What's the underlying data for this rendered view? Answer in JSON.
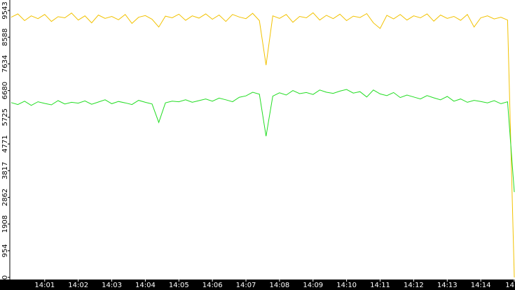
{
  "chart_data": {
    "type": "line",
    "x": [
      0,
      0.2,
      0.4,
      0.6,
      0.8,
      1,
      1.2,
      1.4,
      1.6,
      1.8,
      2,
      2.2,
      2.4,
      2.6,
      2.8,
      3,
      3.2,
      3.4,
      3.6,
      3.8,
      4,
      4.2,
      4.4,
      4.6,
      4.8,
      5,
      5.2,
      5.4,
      5.6,
      5.8,
      6,
      6.2,
      6.4,
      6.6,
      6.8,
      7,
      7.2,
      7.4,
      7.6,
      7.8,
      8,
      8.2,
      8.4,
      8.6,
      8.8,
      9,
      9.2,
      9.4,
      9.6,
      9.8,
      10,
      10.2,
      10.4,
      10.6,
      10.8,
      11,
      11.2,
      11.4,
      11.6,
      11.8,
      12,
      12.2,
      12.4,
      12.6,
      12.8,
      13,
      13.2,
      13.4,
      13.6,
      13.8,
      14,
      14.2,
      14.4,
      14.6,
      14.8,
      15
    ],
    "series": [
      {
        "color": "#f2c200",
        "values": [
          9300,
          9420,
          9180,
          9350,
          9250,
          9400,
          9150,
          9320,
          9280,
          9450,
          9200,
          9350,
          9100,
          9380,
          9260,
          9330,
          9210,
          9400,
          9080,
          9300,
          9360,
          9230,
          8950,
          9340,
          9280,
          9410,
          9190,
          9350,
          9270,
          9420,
          9230,
          9380,
          9150,
          9400,
          9310,
          9250,
          9440,
          9180,
          7590,
          9350,
          9260,
          9400,
          9120,
          9330,
          9280,
          9460,
          9200,
          9370,
          9250,
          9410,
          9180,
          9340,
          9290,
          9430,
          9100,
          8900,
          9370,
          9240,
          9400,
          9200,
          9350,
          9280,
          9420,
          9160,
          9380,
          9260,
          9330,
          9190,
          9400,
          8950,
          9280,
          9350,
          9240,
          9300,
          9200,
          0
        ]
      },
      {
        "color": "#22dd22",
        "values": [
          6250,
          6180,
          6300,
          6150,
          6280,
          6220,
          6170,
          6320,
          6200,
          6260,
          6230,
          6310,
          6190,
          6270,
          6350,
          6210,
          6290,
          6240,
          6180,
          6330,
          6260,
          6200,
          5540,
          6240,
          6300,
          6280,
          6350,
          6260,
          6320,
          6380,
          6300,
          6410,
          6350,
          6280,
          6440,
          6490,
          6620,
          6550,
          5050,
          6480,
          6600,
          6520,
          6680,
          6570,
          6610,
          6540,
          6700,
          6620,
          6580,
          6660,
          6720,
          6590,
          6640,
          6450,
          6700,
          6560,
          6500,
          6610,
          6430,
          6520,
          6450,
          6380,
          6500,
          6420,
          6350,
          6470,
          6300,
          6380,
          6260,
          6330,
          6290,
          6240,
          6320,
          6210,
          6280,
          3050
        ]
      }
    ],
    "xlim": [
      -0.04,
      15
    ],
    "xticks": [
      {
        "value": 1,
        "label": "14:01"
      },
      {
        "value": 2,
        "label": "14:02"
      },
      {
        "value": 3,
        "label": "14:03"
      },
      {
        "value": 4,
        "label": "14:04"
      },
      {
        "value": 5,
        "label": "14:05"
      },
      {
        "value": 6,
        "label": "14:06"
      },
      {
        "value": 7,
        "label": "14:07"
      },
      {
        "value": 8,
        "label": "14:08"
      },
      {
        "value": 9,
        "label": "14:09"
      },
      {
        "value": 10,
        "label": "14:10"
      },
      {
        "value": 11,
        "label": "14:11"
      },
      {
        "value": 12,
        "label": "14:12"
      },
      {
        "value": 13,
        "label": "14:13"
      },
      {
        "value": 14,
        "label": "14:14"
      },
      {
        "value": 15,
        "label": "14"
      }
    ],
    "ylim": [
      0,
      9918
    ],
    "yticks": [
      0,
      954,
      1908,
      2862,
      3817,
      4771,
      5725,
      6680,
      7634,
      8588,
      9543
    ]
  }
}
